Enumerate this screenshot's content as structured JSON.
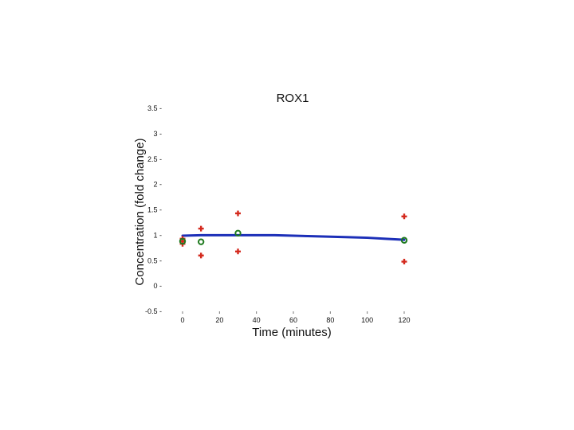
{
  "chart_data": {
    "type": "scatter",
    "title": "ROX1",
    "xlabel": "Time (minutes)",
    "ylabel": "Concentration (fold change)",
    "xlim": [
      -5,
      125
    ],
    "ylim": [
      -0.5,
      3.5
    ],
    "x_ticks": [
      0,
      20,
      40,
      60,
      80,
      100,
      120
    ],
    "x_tick_labels": [
      "0",
      "20",
      "40",
      "60",
      "80",
      "100",
      "120"
    ],
    "y_ticks": [
      3.5,
      3,
      2.5,
      2,
      1.5,
      1,
      0.5,
      0,
      -0.5
    ],
    "y_tick_labels": [
      "3.5",
      "3",
      "2.5",
      "2",
      "1.5",
      "1",
      "0.5",
      "0",
      "-0.5"
    ],
    "grid": false,
    "legend": "none",
    "series": [
      {
        "kind": "scatter",
        "marker": "plus",
        "color": "#d42a1e",
        "x": [
          0,
          0,
          0,
          10,
          10,
          30,
          30,
          120,
          120
        ],
        "y": [
          0.83,
          0.88,
          0.93,
          1.13,
          0.6,
          1.43,
          0.68,
          1.37,
          0.48
        ]
      },
      {
        "kind": "scatter",
        "marker": "circle",
        "color": "#1f7a1f",
        "x": [
          0,
          10,
          30,
          120
        ],
        "y": [
          0.88,
          0.87,
          1.04,
          0.9
        ]
      },
      {
        "kind": "line",
        "color": "#1c2fb8",
        "x": [
          0,
          10,
          20,
          30,
          40,
          50,
          60,
          70,
          80,
          90,
          100,
          110,
          120
        ],
        "y": [
          0.99,
          1.0,
          1.0,
          1.0,
          1.0,
          1.0,
          0.99,
          0.98,
          0.97,
          0.96,
          0.95,
          0.93,
          0.91
        ]
      }
    ]
  }
}
